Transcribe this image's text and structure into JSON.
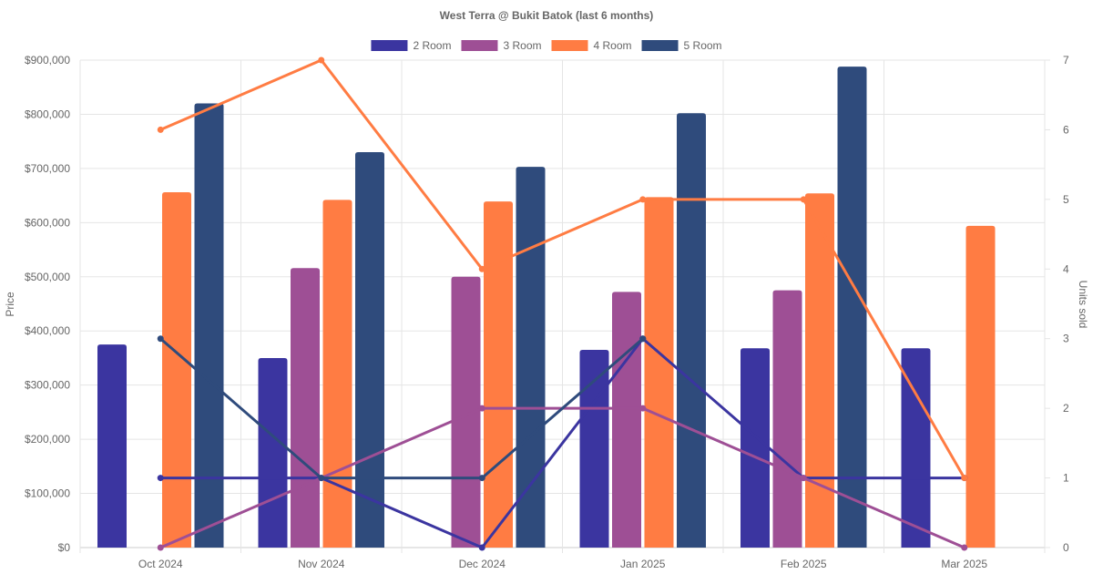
{
  "chart_data": {
    "type": "bar",
    "title": "West Terra @ Bukit Batok (last 6 months)",
    "categories": [
      "Oct 2024",
      "Nov 2024",
      "Dec 2024",
      "Jan 2025",
      "Feb 2025",
      "Mar 2025"
    ],
    "ylabel": "Price",
    "y2label": "Units sold",
    "ylim": [
      0,
      900000
    ],
    "y2lim": [
      0,
      7
    ],
    "yticks": [
      "$0",
      "$100,000",
      "$200,000",
      "$300,000",
      "$400,000",
      "$500,000",
      "$600,000",
      "$700,000",
      "$800,000",
      "$900,000"
    ],
    "y2ticks": [
      "0",
      "1",
      "2",
      "3",
      "4",
      "5",
      "6",
      "7"
    ],
    "legend_position": "top",
    "grid": true,
    "series": [
      {
        "name": "2 Room",
        "color": "#3b35a0",
        "prices": [
          375000,
          350000,
          null,
          365000,
          368000,
          368000
        ],
        "units": [
          1,
          1,
          0,
          3,
          1,
          1
        ]
      },
      {
        "name": "3 Room",
        "color": "#9e4f95",
        "prices": [
          null,
          516000,
          500000,
          472000,
          475000,
          null
        ],
        "units": [
          0,
          1,
          2,
          2,
          1,
          0
        ]
      },
      {
        "name": "4 Room",
        "color": "#ff7c43",
        "prices": [
          656000,
          642000,
          639000,
          647000,
          654000,
          594000
        ],
        "units": [
          6,
          7,
          4,
          5,
          5,
          1
        ]
      },
      {
        "name": "5 Room",
        "color": "#2f4b7c",
        "prices": [
          820000,
          730000,
          703000,
          802000,
          888000,
          null
        ],
        "units": [
          3,
          1,
          1,
          3,
          null,
          null
        ]
      }
    ]
  }
}
